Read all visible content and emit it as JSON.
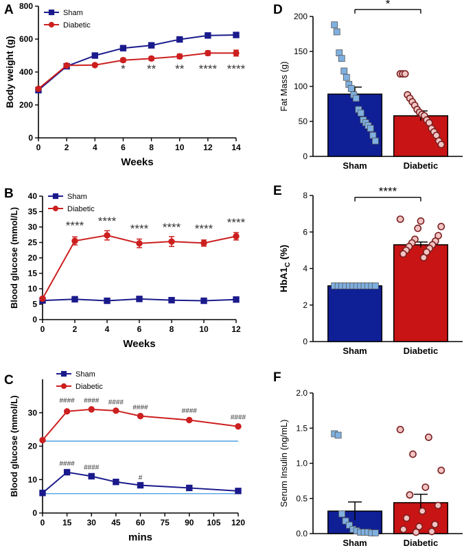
{
  "colors": {
    "sham": "#1a1a8c",
    "diabetic": "#cc1f1f",
    "fill_sham": "#0f1f96",
    "fill_diabetic": "#c81414",
    "dot_sham": "#7fb0e0",
    "dot_diabetic": "#f2c4c4",
    "ref_line": "#3d9ae0"
  },
  "chart_data": [
    {
      "panel": "A",
      "type": "line",
      "xlabel": "Weeks",
      "ylabel": "Body weight (g)",
      "xlim": [
        0,
        14
      ],
      "ylim": [
        0,
        800
      ],
      "xticks": [
        0,
        2,
        4,
        6,
        8,
        10,
        12,
        14
      ],
      "yticks": [
        0,
        200,
        400,
        600,
        800
      ],
      "xtick_labels": [
        "0",
        "2",
        "4",
        "6",
        "8",
        "10",
        "12",
        "14"
      ],
      "ytick_labels": [
        "0",
        "200",
        "400",
        "600",
        "800"
      ],
      "legend": [
        "Sham",
        "Diabetic"
      ],
      "series": [
        {
          "name": "Sham",
          "x": [
            0,
            2,
            4,
            6,
            8,
            10,
            12,
            14
          ],
          "values": [
            290,
            435,
            500,
            545,
            562,
            598,
            622,
            625
          ],
          "err": [
            8,
            8,
            8,
            10,
            10,
            12,
            12,
            12
          ]
        },
        {
          "name": "Diabetic",
          "x": [
            0,
            2,
            4,
            6,
            8,
            10,
            12,
            14
          ],
          "values": [
            298,
            440,
            442,
            472,
            482,
            495,
            515,
            515
          ],
          "err": [
            8,
            8,
            8,
            12,
            12,
            14,
            14,
            18
          ]
        }
      ],
      "annotations": [
        {
          "x": 6,
          "y": 430,
          "text": "*"
        },
        {
          "x": 8,
          "y": 430,
          "text": "**"
        },
        {
          "x": 10,
          "y": 430,
          "text": "**"
        },
        {
          "x": 12,
          "y": 430,
          "text": "****"
        },
        {
          "x": 14,
          "y": 430,
          "text": "****"
        }
      ]
    },
    {
      "panel": "B",
      "type": "line",
      "xlabel": "Weeks",
      "ylabel": "Blood glucose (mmol/L)",
      "xlim": [
        0,
        12
      ],
      "ylim": [
        0,
        40
      ],
      "xticks": [
        0,
        2,
        4,
        6,
        8,
        10,
        12
      ],
      "yticks": [
        0,
        5,
        10,
        15,
        20,
        25,
        30,
        35,
        40
      ],
      "xtick_labels": [
        "0",
        "2",
        "4",
        "6",
        "8",
        "10",
        "12"
      ],
      "ytick_labels": [
        "0",
        "5",
        "10",
        "15",
        "20",
        "25",
        "30",
        "35",
        "40"
      ],
      "legend": [
        "Sham",
        "Diabetic"
      ],
      "series": [
        {
          "name": "Sham",
          "x": [
            0,
            2,
            4,
            6,
            8,
            10,
            12
          ],
          "values": [
            6.2,
            6.6,
            6.1,
            6.7,
            6.3,
            6.1,
            6.5
          ],
          "err": [
            0.4,
            0.4,
            0.4,
            0.4,
            0.4,
            0.4,
            0.4
          ]
        },
        {
          "name": "Diabetic",
          "x": [
            0,
            2,
            4,
            6,
            8,
            10,
            12
          ],
          "values": [
            6.8,
            25.5,
            27.3,
            24.7,
            25.3,
            24.8,
            27.0
          ],
          "err": [
            0.5,
            1.3,
            1.5,
            1.4,
            1.6,
            1.0,
            1.2
          ]
        }
      ],
      "annotations": [
        {
          "x": 2,
          "y": 31,
          "text": "****"
        },
        {
          "x": 4,
          "y": 32.5,
          "text": "****"
        },
        {
          "x": 6,
          "y": 30,
          "text": "****"
        },
        {
          "x": 8,
          "y": 30.5,
          "text": "****"
        },
        {
          "x": 10,
          "y": 30,
          "text": "****"
        },
        {
          "x": 12,
          "y": 32,
          "text": "****"
        }
      ]
    },
    {
      "panel": "C",
      "type": "line",
      "xlabel": "mins",
      "ylabel": "Blood glucose (mmol/L)",
      "xlim": [
        0,
        120
      ],
      "ylim": [
        0,
        40
      ],
      "xticks": [
        0,
        15,
        30,
        45,
        60,
        75,
        90,
        105,
        120
      ],
      "yticks": [
        0,
        10,
        20,
        30
      ],
      "xtick_labels": [
        "0",
        "15",
        "30",
        "45",
        "60",
        "75",
        "90",
        "105",
        "120"
      ],
      "ytick_labels": [
        "0",
        "10",
        "20",
        "30"
      ],
      "legend": [
        "Sham",
        "Diabetic"
      ],
      "reference_lines": [
        21.5,
        5.8
      ],
      "series": [
        {
          "name": "Sham",
          "x": [
            0,
            15,
            30,
            45,
            60,
            90,
            120
          ],
          "values": [
            6.0,
            12.2,
            11.0,
            9.3,
            8.3,
            7.5,
            6.6
          ]
        },
        {
          "name": "Diabetic",
          "x": [
            0,
            15,
            30,
            45,
            60,
            90,
            120
          ],
          "values": [
            21.8,
            30.4,
            31.0,
            30.6,
            29.0,
            27.8,
            25.9
          ]
        }
      ],
      "annotations": [
        {
          "x": 15,
          "y": 33,
          "text": "####"
        },
        {
          "x": 30,
          "y": 33,
          "text": "####"
        },
        {
          "x": 45,
          "y": 32.5,
          "text": "####"
        },
        {
          "x": 60,
          "y": 31,
          "text": "####"
        },
        {
          "x": 90,
          "y": 30,
          "text": "####"
        },
        {
          "x": 120,
          "y": 28,
          "text": "####"
        },
        {
          "x": 15,
          "y": 14.2,
          "text": "####"
        },
        {
          "x": 30,
          "y": 13,
          "text": "####"
        },
        {
          "x": 60,
          "y": 10,
          "text": "#"
        }
      ]
    },
    {
      "panel": "D",
      "type": "bar",
      "ylabel": "Fat Mass (g)",
      "ylim": [
        0,
        200
      ],
      "yticks": [
        0,
        50,
        100,
        150,
        200
      ],
      "ytick_labels": [
        "0",
        "50",
        "100",
        "150",
        "200"
      ],
      "categories": [
        "Sham",
        "Diabetic"
      ],
      "values": [
        89,
        58
      ],
      "err": [
        10,
        7
      ],
      "points": [
        [
          188,
          178,
          148,
          140,
          122,
          113,
          103,
          97,
          88,
          83,
          67,
          62,
          52,
          48,
          44,
          40,
          30,
          22
        ],
        [
          118,
          118,
          118,
          88,
          83,
          78,
          73,
          67,
          63,
          60,
          58,
          52,
          48,
          40,
          35,
          30,
          22,
          17
        ]
      ],
      "significance": {
        "text": "*",
        "y": 210
      }
    },
    {
      "panel": "E",
      "type": "bar",
      "ylabel": "HbA1",
      "ylabel_sub": "C",
      "ylabel_tail": " (%)",
      "ylim": [
        0,
        8
      ],
      "yticks": [
        0,
        2,
        4,
        6,
        8
      ],
      "ytick_labels": [
        "0",
        "2",
        "4",
        "6",
        "8"
      ],
      "categories": [
        "Sham",
        "Diabetic"
      ],
      "values": [
        3.05,
        5.3
      ],
      "err": [
        0.05,
        0.15
      ],
      "points": [
        [
          3.05,
          3.05,
          3.05,
          3.05,
          3.05,
          3.05,
          3.05,
          3.05,
          3.05,
          3.05,
          3.05,
          3.05
        ],
        [
          6.7,
          6.6,
          6.3,
          6.2,
          5.8,
          5.6,
          5.5,
          5.4,
          5.3,
          5.2,
          5.1,
          5.0,
          4.9,
          4.8,
          4.6
        ]
      ],
      "significance": {
        "text": "****",
        "y": 7.9
      }
    },
    {
      "panel": "F",
      "type": "bar",
      "ylabel": "Serum Insulin (ng/mL)",
      "ylim": [
        0,
        2.0
      ],
      "yticks": [
        0,
        0.5,
        1.0,
        1.5,
        2.0
      ],
      "ytick_labels": [
        "0.0",
        "0.5",
        "1.0",
        "1.5",
        "2.0"
      ],
      "categories": [
        "Sham",
        "Diabetic"
      ],
      "values": [
        0.32,
        0.44
      ],
      "err": [
        0.13,
        0.12
      ],
      "points": [
        [
          1.42,
          1.4,
          0.28,
          0.18,
          0.12,
          0.06,
          0.04,
          0.02,
          0.02,
          0.02,
          0.01,
          0.01
        ],
        [
          1.48,
          1.37,
          1.13,
          0.9,
          0.66,
          0.55,
          0.4,
          0.32,
          0.22,
          0.13,
          0.1,
          0.06,
          0.03,
          0.02
        ]
      ]
    }
  ]
}
